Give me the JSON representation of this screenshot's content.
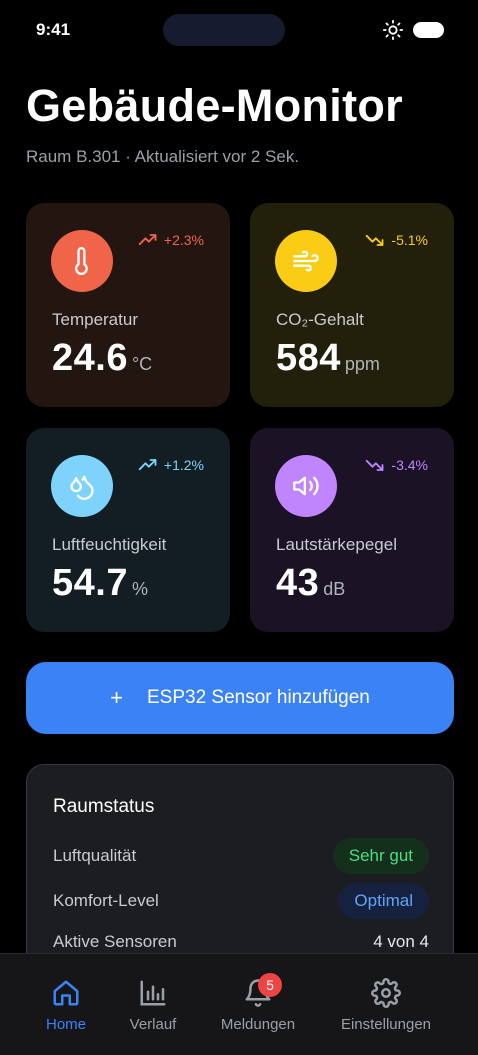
{
  "status_bar": {
    "time": "9:41"
  },
  "header": {
    "title": "Gebäude-Monitor",
    "subtitle": "Raum B.301 · Aktualisiert vor 2 Sek."
  },
  "metrics": {
    "temperature": {
      "label": "Temperatur",
      "value": "24.6",
      "unit": "°C",
      "trend": "+2.3%",
      "trend_dir": "up",
      "color": "#f0654a",
      "icon": "thermometer-icon"
    },
    "co2": {
      "label": "CO₂-Gehalt",
      "value": "584",
      "unit": "ppm",
      "trend": "-5.1%",
      "trend_dir": "down",
      "color": "#facc15",
      "icon": "wind-icon"
    },
    "humidity": {
      "label": "Luftfeuchtigkeit",
      "value": "54.7",
      "unit": "%",
      "trend": "+1.2%",
      "trend_dir": "up",
      "color": "#7dd3fc",
      "icon": "droplets-icon"
    },
    "noise": {
      "label": "Lautstärkepegel",
      "value": "43",
      "unit": "dB",
      "trend": "-3.4%",
      "trend_dir": "down",
      "color": "#c084fc",
      "icon": "speaker-icon"
    }
  },
  "actions": {
    "add_sensor": "ESP32 Sensor hinzufügen",
    "add_icon": "+"
  },
  "room_status": {
    "title": "Raumstatus",
    "air_quality": {
      "label": "Luftqualität",
      "value": "Sehr gut"
    },
    "comfort": {
      "label": "Komfort-Level",
      "value": "Optimal"
    },
    "sensors": {
      "label": "Aktive Sensoren",
      "value": "4 von 4"
    }
  },
  "tabs": [
    {
      "label": "Home",
      "icon": "home-icon",
      "active": true
    },
    {
      "label": "Verlauf",
      "icon": "chart-icon",
      "active": false
    },
    {
      "label": "Meldungen",
      "icon": "bell-icon",
      "active": false,
      "badge": "5"
    },
    {
      "label": "Einstellungen",
      "icon": "gear-icon",
      "active": false
    }
  ],
  "colors": {
    "accent": "#3b82f6",
    "good": "#4ade80",
    "background": "#000000"
  }
}
